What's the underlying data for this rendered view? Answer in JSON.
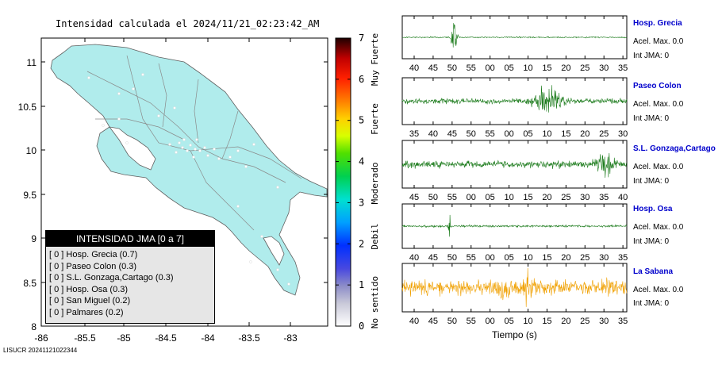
{
  "map": {
    "title": "Intensidad calculada el 2024/11/21_02:23:42_AM",
    "x_ticks": [
      "-86",
      "-85.5",
      "-85",
      "-84.5",
      "-84",
      "-83.5",
      "-83"
    ],
    "y_ticks": [
      "11",
      "10.5",
      "10",
      "9.5",
      "9",
      "8.5",
      "8"
    ],
    "land_color": "#b0ecec",
    "legend": {
      "title": "INTENSIDAD JMA [0 a 7]",
      "items": [
        "[ 0 ]  Hosp. Grecia (0.7)",
        "[ 0 ]  Paseo Colon (0.3)",
        "[ 0 ]  S.L. Gonzaga,Cartago (0.3)",
        "[ 0 ]  Hosp. Osa (0.3)",
        "[ 0 ]  San Miguel (0.2)",
        "[ 0 ]  Palmares (0.2)"
      ]
    }
  },
  "colorbar": {
    "ticks": [
      "0",
      "1",
      "2",
      "3",
      "4",
      "5",
      "6",
      "7"
    ],
    "labels": [
      "No sentido",
      "Debil",
      "Moderado",
      "Fuerte",
      "Muy Fuerte"
    ]
  },
  "stations": [
    {
      "name": "Hosp. Grecia",
      "acel": "Acel. Max. 0.0",
      "int": "Int JMA: 0",
      "ticks": [
        "40",
        "45",
        "50",
        "55",
        "00",
        "05",
        "10",
        "15",
        "20",
        "25",
        "30",
        "35"
      ],
      "color": "#1a7a1a",
      "burst": 0.18,
      "amp": "spike"
    },
    {
      "name": "Paseo Colon",
      "acel": "Acel. Max. 0.0",
      "int": "Int JMA: 0",
      "ticks": [
        "35",
        "40",
        "45",
        "50",
        "55",
        "00",
        "05",
        "10",
        "15",
        "20",
        "25",
        "30"
      ],
      "color": "#1a7a1a",
      "burst": 0.65,
      "amp": "burst"
    },
    {
      "name": "S.L. Gonzaga,Cartago",
      "acel": "Acel. Max. 0.0",
      "int": "Int JMA: 0",
      "ticks": [
        "45",
        "50",
        "55",
        "00",
        "05",
        "10",
        "15",
        "20",
        "25",
        "30",
        "35",
        "40"
      ],
      "color": "#1a7a1a",
      "burst": 0.9,
      "amp": "noise"
    },
    {
      "name": "Hosp. Osa",
      "acel": "Acel. Max. 0.0",
      "int": "Int JMA: 0",
      "ticks": [
        "40",
        "45",
        "50",
        "55",
        "00",
        "05",
        "10",
        "15",
        "20",
        "25",
        "30",
        "35"
      ],
      "color": "#1a7a1a",
      "burst": 0.2,
      "amp": "single"
    },
    {
      "name": "La Sabana",
      "acel": "Acel. Max. 0.0",
      "int": "Int JMA: 0",
      "ticks": [
        "40",
        "45",
        "50",
        "55",
        "00",
        "05",
        "10",
        "15",
        "20",
        "25",
        "30",
        "35"
      ],
      "color": "#f0a000",
      "burst": 0.45,
      "amp": "orange"
    }
  ],
  "xaxis_title": "Tiempo (s)",
  "footer_id": "LISUCR 20241121022344"
}
